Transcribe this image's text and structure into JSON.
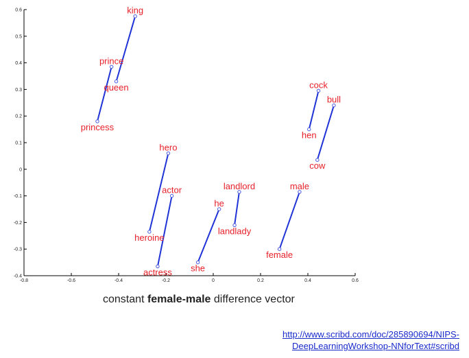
{
  "chart_data": {
    "type": "scatter",
    "xlim": [
      -0.8,
      0.6
    ],
    "ylim": [
      -0.4,
      0.6
    ],
    "x_ticks": [
      "-0.8",
      "-0.6",
      "-0.4",
      "-0.2",
      "0",
      "0.2",
      "0.4",
      "0.6"
    ],
    "y_ticks": [
      "-0.4",
      "-0.3",
      "-0.2",
      "-0.1",
      "0",
      "0.1",
      "0.2",
      "0.3",
      "0.4",
      "0.5",
      "0.6"
    ],
    "x_tick_values": [
      -0.8,
      -0.6,
      -0.4,
      -0.2,
      0,
      0.2,
      0.4,
      0.6
    ],
    "y_tick_values": [
      -0.4,
      -0.3,
      -0.2,
      -0.1,
      0,
      0.1,
      0.2,
      0.3,
      0.4,
      0.5,
      0.6
    ],
    "point_color": "#e8202a",
    "line_color": "#1f33d6",
    "marker_color": "#4a5ae0",
    "points": [
      {
        "word": "king",
        "x": -0.33,
        "y": 0.575,
        "label_pos": "above"
      },
      {
        "word": "queen",
        "x": -0.41,
        "y": 0.33,
        "label_pos": "below"
      },
      {
        "word": "prince",
        "x": -0.43,
        "y": 0.385,
        "label_pos": "above"
      },
      {
        "word": "princess",
        "x": -0.49,
        "y": 0.18,
        "label_pos": "below"
      },
      {
        "word": "hero",
        "x": -0.19,
        "y": 0.06,
        "label_pos": "above"
      },
      {
        "word": "heroine",
        "x": -0.27,
        "y": -0.235,
        "label_pos": "below"
      },
      {
        "word": "actor",
        "x": -0.175,
        "y": -0.1,
        "label_pos": "above"
      },
      {
        "word": "actress",
        "x": -0.235,
        "y": -0.365,
        "label_pos": "below"
      },
      {
        "word": "he",
        "x": 0.025,
        "y": -0.15,
        "label_pos": "above"
      },
      {
        "word": "she",
        "x": -0.065,
        "y": -0.35,
        "label_pos": "below"
      },
      {
        "word": "landlord",
        "x": 0.11,
        "y": -0.085,
        "label_pos": "above"
      },
      {
        "word": "landlady",
        "x": 0.09,
        "y": -0.21,
        "label_pos": "below"
      },
      {
        "word": "male",
        "x": 0.365,
        "y": -0.085,
        "label_pos": "above"
      },
      {
        "word": "female",
        "x": 0.28,
        "y": -0.3,
        "label_pos": "below"
      },
      {
        "word": "cock",
        "x": 0.445,
        "y": 0.295,
        "label_pos": "above"
      },
      {
        "word": "hen",
        "x": 0.405,
        "y": 0.15,
        "label_pos": "below"
      },
      {
        "word": "bull",
        "x": 0.51,
        "y": 0.24,
        "label_pos": "above"
      },
      {
        "word": "cow",
        "x": 0.44,
        "y": 0.035,
        "label_pos": "below"
      }
    ],
    "pairs": [
      [
        "king",
        "queen"
      ],
      [
        "prince",
        "princess"
      ],
      [
        "hero",
        "heroine"
      ],
      [
        "actor",
        "actress"
      ],
      [
        "he",
        "she"
      ],
      [
        "landlord",
        "landlady"
      ],
      [
        "male",
        "female"
      ],
      [
        "cock",
        "hen"
      ],
      [
        "bull",
        "cow"
      ]
    ]
  },
  "caption": {
    "prefix": "constant ",
    "bold": "female-male",
    "suffix": " difference vector"
  },
  "source": {
    "line1": "http://www.scribd.com/doc/285890694/NIPS-",
    "line2": "DeepLearningWorkshop-NNforText#scribd"
  }
}
